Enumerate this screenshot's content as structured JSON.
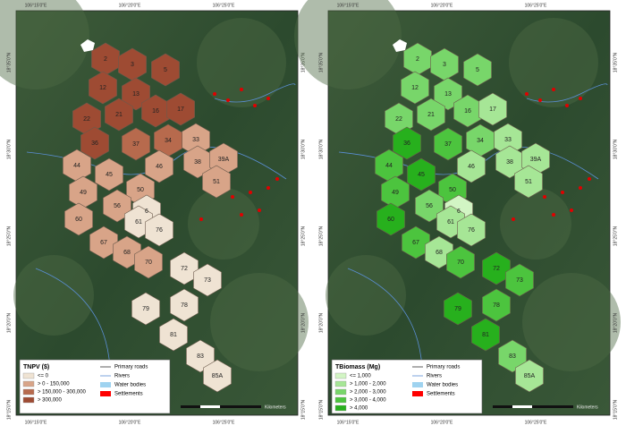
{
  "maps": [
    {
      "legend": {
        "title": "TNPV ($)",
        "classes": [
          {
            "label": "<= 0",
            "color": "#efe3d3"
          },
          {
            "label": "> 0 - 150,000",
            "color": "#d8a488"
          },
          {
            "label": "> 150,000 - 300,000",
            "color": "#b76a4d"
          },
          {
            "label": "> 300,000",
            "color": "#9e4b33"
          }
        ]
      },
      "zone_fills": [
        "#9e4b33",
        "#9e4b33",
        "#9e4b33",
        "#9e4b33",
        "#9e4b33",
        "#9e4b33",
        "#9e4b33",
        "#9e4b33",
        "#9e4b33",
        "#d8a488",
        "#b76a4d",
        "#9e4b33",
        "#b76a4d",
        "#d8a488",
        "#d8a488",
        "#d8a488",
        "#d8a488",
        "#d8a488",
        "#d8a488",
        "#d8a488",
        "#d8a488",
        "#d8a488",
        "#efe3d3",
        "#d8a488",
        "#efe3d3",
        "#efe3d3",
        "#d8a488",
        "#d8a488",
        "#d8a488",
        "#efe3d3",
        "#efe3d3",
        "#efe3d3",
        "#efe3d3",
        "#efe3d3",
        "#efe3d3",
        "#efe3d3"
      ]
    },
    {
      "legend": {
        "title": "TBiomass (Mg)",
        "classes": [
          {
            "label": "<= 1,000",
            "color": "#d2f5c4"
          },
          {
            "label": "> 1,000 - 2,000",
            "color": "#a6e696"
          },
          {
            "label": "> 2,000 - 3,000",
            "color": "#78d66a"
          },
          {
            "label": "> 3,000 - 4,000",
            "color": "#4cc43e"
          },
          {
            "label": "> 4,000",
            "color": "#27b01d"
          }
        ]
      },
      "zone_fills": [
        "#78d66a",
        "#78d66a",
        "#78d66a",
        "#78d66a",
        "#78d66a",
        "#78d66a",
        "#a6e696",
        "#78d66a",
        "#78d66a",
        "#a6e696",
        "#78d66a",
        "#27b01d",
        "#4cc43e",
        "#a6e696",
        "#a6e696",
        "#4cc43e",
        "#27b01d",
        "#a6e696",
        "#4cc43e",
        "#4cc43e",
        "#a6e696",
        "#78d66a",
        "#d2f5c4",
        "#27b01d",
        "#a6e696",
        "#a6e696",
        "#4cc43e",
        "#a6e696",
        "#4cc43e",
        "#27b01d",
        "#4cc43e",
        "#4cc43e",
        "#27b01d",
        "#27b01d",
        "#78d66a",
        "#a6e696"
      ]
    }
  ],
  "other_legend": [
    {
      "label": "Primary roads",
      "color": "#333333"
    },
    {
      "label": "Rivers",
      "color": "#5b8fd6"
    },
    {
      "label": "Water bodies",
      "color": "#9fd3f0"
    },
    {
      "label": "Settlements",
      "color": "#ff0000"
    }
  ],
  "zones": [
    "2",
    "3",
    "5",
    "12",
    "13",
    "16",
    "17",
    "21",
    "22",
    "33",
    "34",
    "36",
    "37",
    "38",
    "39A",
    "44",
    "45",
    "46",
    "49",
    "50",
    "51",
    "56",
    "6",
    "60",
    "61",
    "76",
    "67",
    "68",
    "70",
    "72",
    "73",
    "78",
    "79",
    "81",
    "83",
    "85A"
  ],
  "lon_labels": [
    "106°15'0\"E",
    "106°20'0\"E",
    "106°25'0\"E"
  ],
  "lat_labels": [
    "18°35'0\"N",
    "18°30'0\"N",
    "18°25'0\"N",
    "18°20'0\"N",
    "18°15'0\"N"
  ],
  "scale_label": "Kilometers"
}
